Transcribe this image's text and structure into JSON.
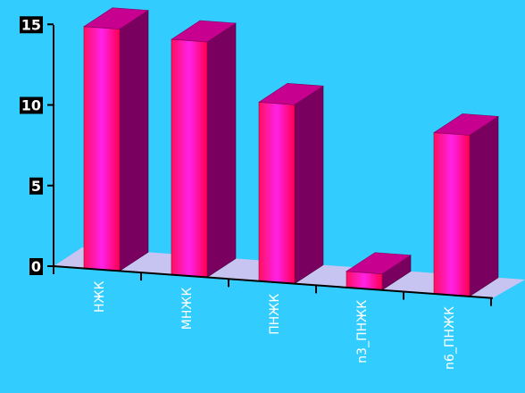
{
  "chart_data": {
    "type": "bar",
    "title": "",
    "xlabel": "",
    "ylabel": "",
    "categories": [
      "НЖК",
      "МНЖК",
      "ПНЖК",
      "n3_ПНЖК",
      "n6_ПНЖК"
    ],
    "values": [
      15.0,
      14.6,
      11.1,
      1.0,
      10.0
    ],
    "yticks": [
      "0",
      "5",
      "10",
      "15"
    ],
    "ylim": [
      0,
      15
    ],
    "grid": false,
    "legend": "none",
    "colors": {
      "bar_front": "#ff0f5a",
      "bar_highlight": "#ff22ee",
      "bar_top": "#c8008f",
      "bar_side": "#7a0060",
      "floor": "#c8c4f2",
      "background": "#33ccff"
    }
  }
}
